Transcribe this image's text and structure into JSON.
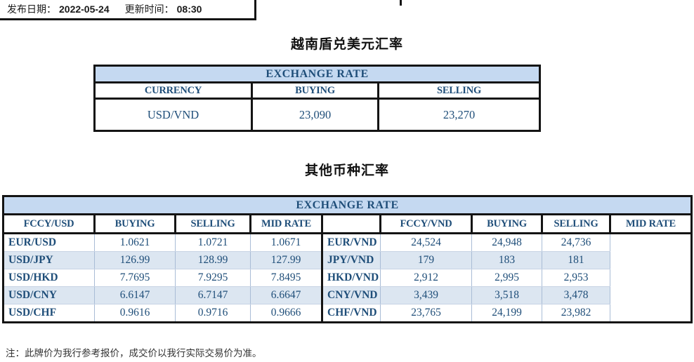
{
  "meta": {
    "publish_label": "发布日期：",
    "publish_date": "2022-05-24",
    "update_label": "更新时间：",
    "update_time": "08:30"
  },
  "section_vnd": {
    "title": "越南盾兑美元汇率",
    "table": {
      "header": "EXCHANGE RATE",
      "columns": [
        "CURRENCY",
        "BUYING",
        "SELLING"
      ],
      "rows": [
        [
          "USD/VND",
          "23,090",
          "23,270"
        ]
      ]
    }
  },
  "section_other": {
    "title": "其他币种汇率",
    "table": {
      "header": "EXCHANGE RATE",
      "left": {
        "columns": [
          "FCCY/USD",
          "BUYING",
          "SELLING",
          "MID RATE"
        ],
        "rows": [
          [
            "EUR/USD",
            "1.0621",
            "1.0721",
            "1.0671"
          ],
          [
            "USD/JPY",
            "126.99",
            "128.99",
            "127.99"
          ],
          [
            "USD/HKD",
            "7.7695",
            "7.9295",
            "7.8495"
          ],
          [
            "USD/CNY",
            "6.6147",
            "6.7147",
            "6.6647"
          ],
          [
            "USD/CHF",
            "0.9616",
            "0.9716",
            "0.9666"
          ]
        ]
      },
      "right": {
        "columns": [
          "FCCY/VND",
          "BUYING",
          "SELLING",
          "MID RATE"
        ],
        "rows": [
          [
            "EUR/VND",
            "24,524",
            "24,948",
            "24,736"
          ],
          [
            "JPY/VND",
            "179",
            "183",
            "181"
          ],
          [
            "HKD/VND",
            "2,912",
            "2,995",
            "2,953"
          ],
          [
            "CNY/VND",
            "3,439",
            "3,518",
            "3,478"
          ],
          [
            "CHF/VND",
            "23,765",
            "24,199",
            "23,982"
          ]
        ]
      },
      "striped_row_indexes": [
        1,
        3
      ]
    }
  },
  "note": "注：此牌价为我行参考报价，成交价以我行实际交易价为准。",
  "colors": {
    "band_fill": "#C5D9F1",
    "stripe_fill": "#DCE6F1",
    "navy_text": "#1F4E79",
    "border_black": "#141414"
  }
}
